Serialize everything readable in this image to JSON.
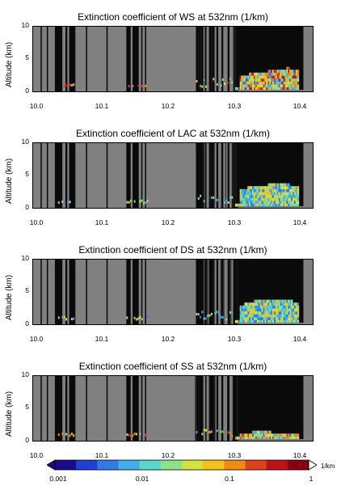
{
  "chart_data": [
    {
      "type": "heatmap",
      "title": "Extinction coefficient of WS at 532nm (1/km)",
      "ylabel": "Altitude (km)",
      "xlabel": "",
      "xlim": [
        10.0,
        10.45
      ],
      "ylim": [
        0,
        10
      ],
      "x_ticks": [
        "10.0",
        "10.1",
        "10.2",
        "10.3",
        "10.4"
      ],
      "y_ticks": [
        "0",
        "5",
        "10"
      ],
      "aerosol_layer_top_km": [
        {
          "x": 10.33,
          "top": 2.0
        },
        {
          "x": 10.35,
          "top": 2.6
        },
        {
          "x": 10.37,
          "top": 2.8
        },
        {
          "x": 10.39,
          "top": 3.1
        },
        {
          "x": 10.41,
          "top": 3.4
        },
        {
          "x": 10.42,
          "top": 3.0
        }
      ]
    },
    {
      "type": "heatmap",
      "title": "Extinction coefficient of LAC at 532nm (1/km)",
      "ylabel": "Altitude (km)",
      "xlabel": "",
      "xlim": [
        10.0,
        10.45
      ],
      "ylim": [
        0,
        10
      ],
      "x_ticks": [
        "10.0",
        "10.1",
        "10.2",
        "10.3",
        "10.4"
      ],
      "y_ticks": [
        "0",
        "5",
        "10"
      ],
      "aerosol_layer_top_km": [
        {
          "x": 10.33,
          "top": 2.5
        },
        {
          "x": 10.35,
          "top": 3.1
        },
        {
          "x": 10.37,
          "top": 3.3
        },
        {
          "x": 10.39,
          "top": 3.5
        },
        {
          "x": 10.41,
          "top": 3.4
        },
        {
          "x": 10.42,
          "top": 3.0
        }
      ]
    },
    {
      "type": "heatmap",
      "title": "Extinction coefficient of DS at 532nm (1/km)",
      "ylabel": "Altitude (km)",
      "xlabel": "",
      "xlim": [
        10.0,
        10.45
      ],
      "ylim": [
        0,
        10
      ],
      "x_ticks": [
        "10.0",
        "10.1",
        "10.2",
        "10.3",
        "10.4"
      ],
      "y_ticks": [
        "0",
        "5",
        "10"
      ],
      "aerosol_layer_top_km": [
        {
          "x": 10.33,
          "top": 2.6
        },
        {
          "x": 10.35,
          "top": 3.3
        },
        {
          "x": 10.37,
          "top": 3.6
        },
        {
          "x": 10.39,
          "top": 3.8
        },
        {
          "x": 10.41,
          "top": 3.5
        },
        {
          "x": 10.42,
          "top": 3.2
        }
      ]
    },
    {
      "type": "heatmap",
      "title": "Extinction coefficient of SS at 532nm (1/km)",
      "ylabel": "Altitude (km)",
      "xlabel": "",
      "xlim": [
        10.0,
        10.45
      ],
      "ylim": [
        0,
        10
      ],
      "x_ticks": [
        "10.0",
        "10.1",
        "10.2",
        "10.3",
        "10.4"
      ],
      "y_ticks": [
        "0",
        "5",
        "10"
      ],
      "aerosol_layer_top_km": [
        {
          "x": 10.33,
          "top": 0.8
        },
        {
          "x": 10.35,
          "top": 1.1
        },
        {
          "x": 10.37,
          "top": 1.2
        },
        {
          "x": 10.39,
          "top": 1.0
        },
        {
          "x": 10.41,
          "top": 0.8
        },
        {
          "x": 10.42,
          "top": 0.7
        }
      ]
    }
  ],
  "colorbar": {
    "scale": "log",
    "range": [
      0.001,
      1
    ],
    "tick_labels": [
      "0.001",
      "0.01",
      "0.1",
      "1"
    ],
    "unit": "1/km",
    "colors": [
      "#1a0a8c",
      "#1f3fd6",
      "#2f7be8",
      "#3fb0ec",
      "#55d8d0",
      "#8fe08a",
      "#d6e23c",
      "#f5c21a",
      "#f08a10",
      "#e0401a",
      "#c0101a",
      "#8a0010"
    ]
  },
  "colors": {
    "no_data": "#808080",
    "night_column": "#0a0a0a"
  }
}
